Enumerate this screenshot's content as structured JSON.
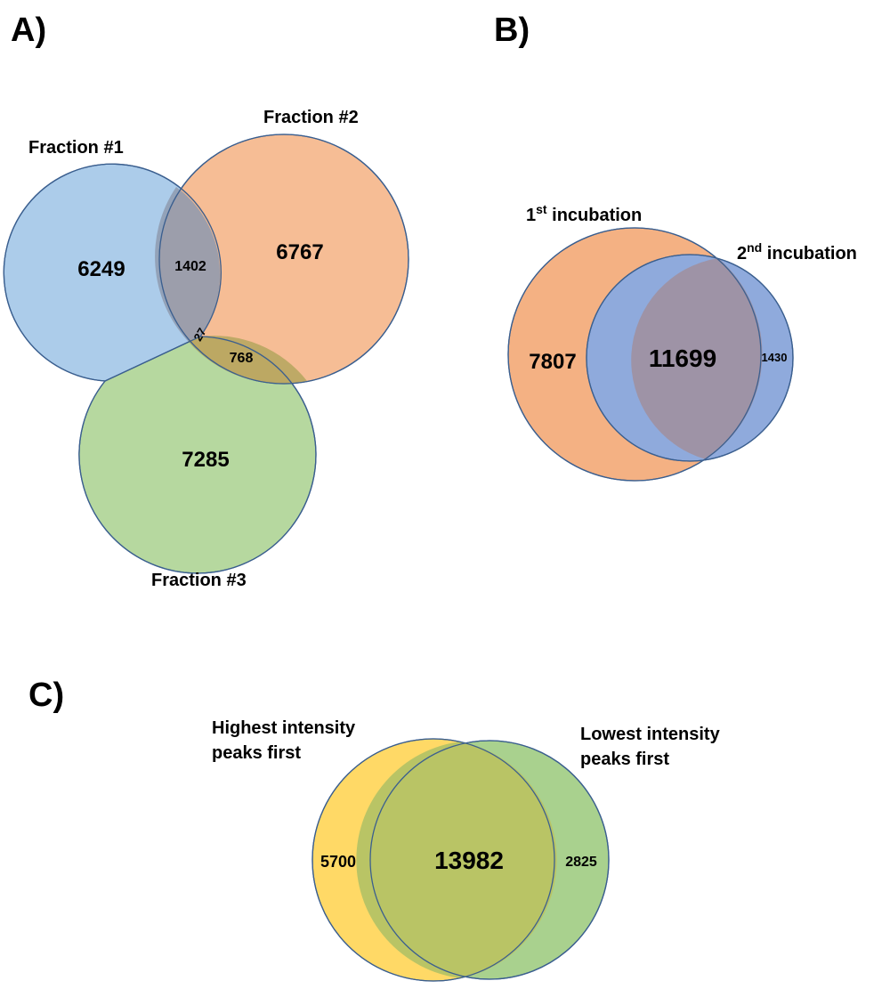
{
  "panel_a": {
    "letter": "A)",
    "sets": {
      "fraction1": {
        "label": "Fraction #1",
        "only": "6249",
        "color": "#9dc3e6"
      },
      "fraction2": {
        "label": "Fraction #2",
        "only": "6767",
        "color": "#f4b183"
      },
      "fraction3": {
        "label": "Fraction #3",
        "only": "7285",
        "color": "#a9d18e"
      }
    },
    "overlaps": {
      "f1_f2": "1402",
      "f2_f3": "768",
      "f1_f2_f3": "27"
    }
  },
  "panel_b": {
    "letter": "B)",
    "sets": {
      "incubation1": {
        "label_main": "1",
        "label_sup": "st",
        "label_rest": " incubation",
        "only": "7807",
        "color": "#f4b183"
      },
      "incubation2": {
        "label_main": "2",
        "label_sup": "nd",
        "label_rest": " incubation",
        "only": "1430",
        "color": "#8faadc"
      }
    },
    "overlap": "11699"
  },
  "panel_c": {
    "letter": "C)",
    "sets": {
      "highest": {
        "label_line1": "Highest intensity",
        "label_line2": "peaks first",
        "only": "5700",
        "color": "#ffd966"
      },
      "lowest": {
        "label_line1": "Lowest intensity",
        "label_line2": "peaks first",
        "only": "2825",
        "color": "#a9d18e"
      }
    },
    "overlap": "13982"
  }
}
